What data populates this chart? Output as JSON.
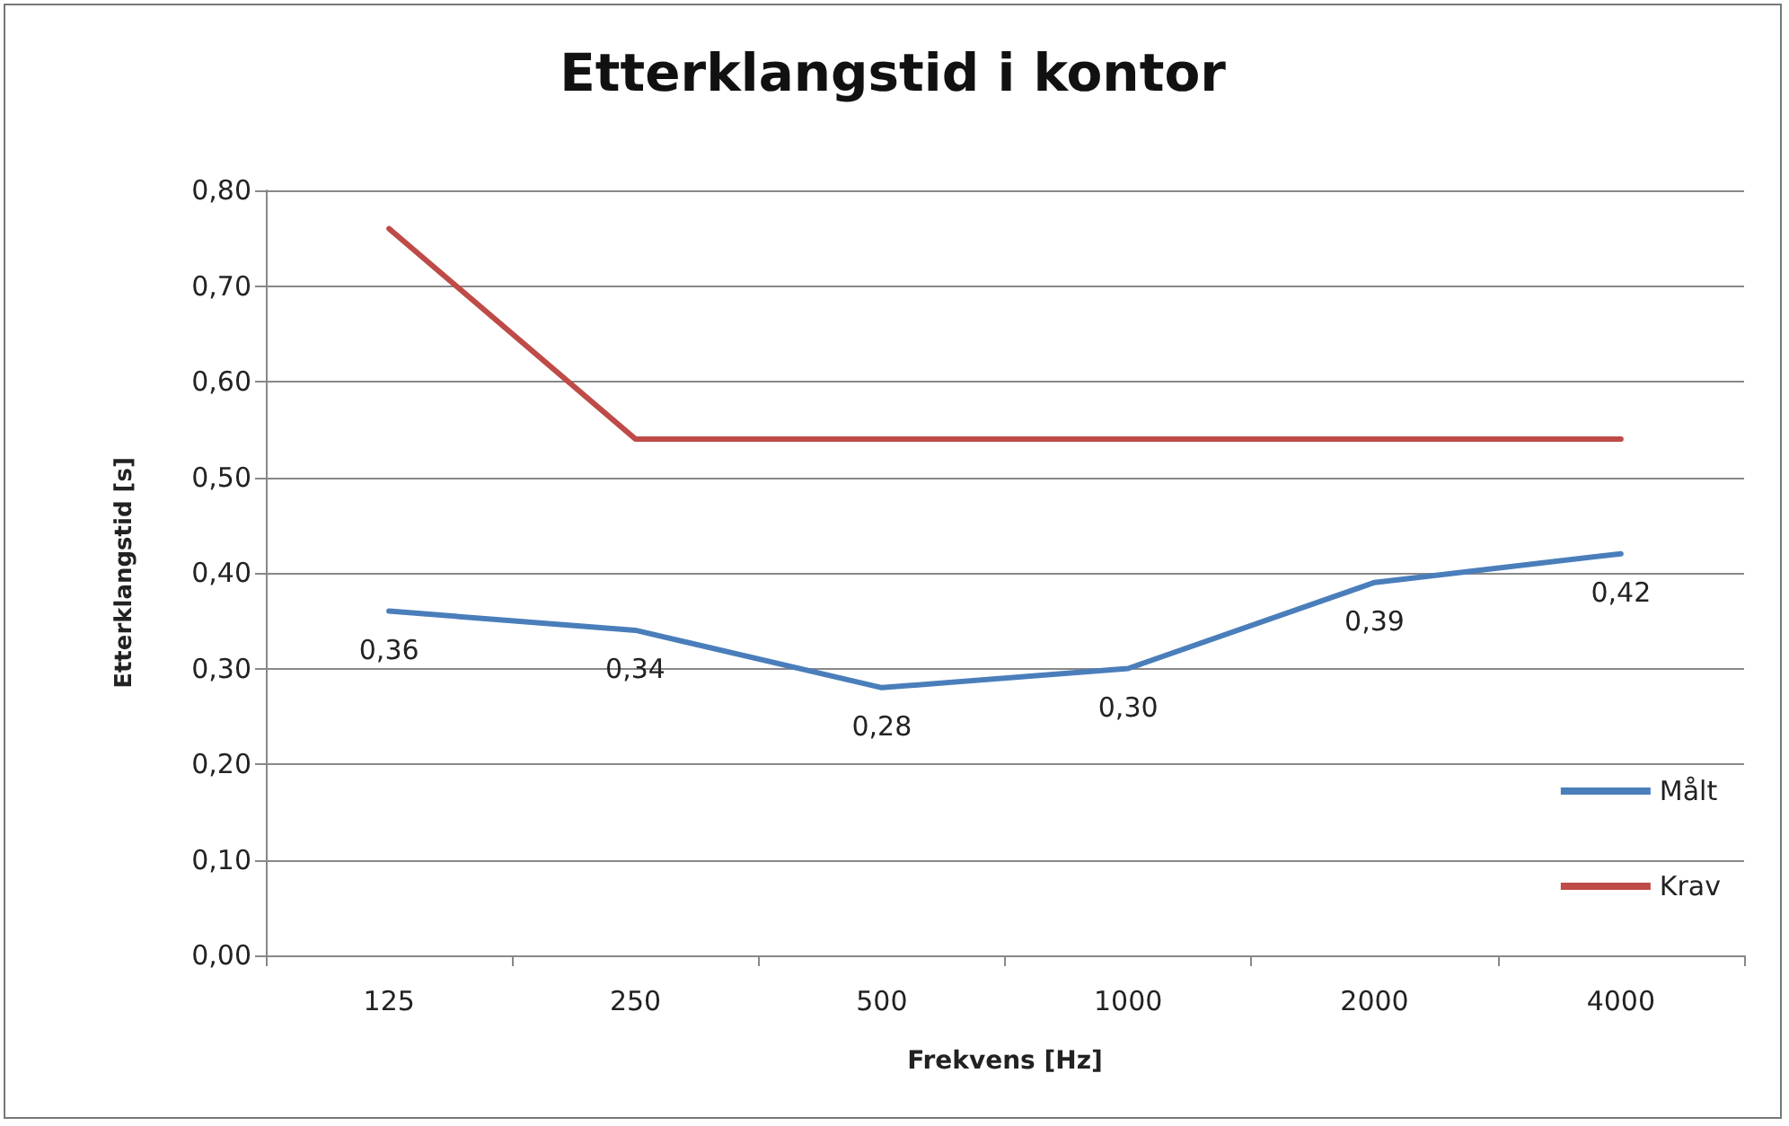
{
  "chart_data": {
    "type": "line",
    "title": "Etterklangstid i kontor",
    "xlabel": "Frekvens [Hz]",
    "ylabel": "Etterklangstid [s]",
    "categories": [
      "125",
      "250",
      "500",
      "1000",
      "2000",
      "4000"
    ],
    "series": [
      {
        "name": "Målt",
        "color": "#4a7ebb",
        "values": [
          0.36,
          0.34,
          0.28,
          0.3,
          0.39,
          0.42
        ],
        "value_labels": [
          "0,36",
          "0,34",
          "0,28",
          "0,30",
          "0,39",
          "0,42"
        ]
      },
      {
        "name": "Krav",
        "color": "#be4b48",
        "values": [
          0.76,
          0.54,
          0.54,
          0.54,
          0.54,
          0.54
        ]
      }
    ],
    "ylim": [
      0,
      0.8
    ],
    "yticks": [
      {
        "value": 0,
        "label": "0,00"
      },
      {
        "value": 0.1,
        "label": "0,10"
      },
      {
        "value": 0.2,
        "label": "0,20"
      },
      {
        "value": 0.3,
        "label": "0,30"
      },
      {
        "value": 0.4,
        "label": "0,40"
      },
      {
        "value": 0.5,
        "label": "0,50"
      },
      {
        "value": 0.6,
        "label": "0,60"
      },
      {
        "value": 0.7,
        "label": "0,70"
      },
      {
        "value": 0.8,
        "label": "0,80"
      }
    ],
    "grid": "y",
    "legend": "right",
    "marker": "none",
    "line_style": "solid"
  }
}
